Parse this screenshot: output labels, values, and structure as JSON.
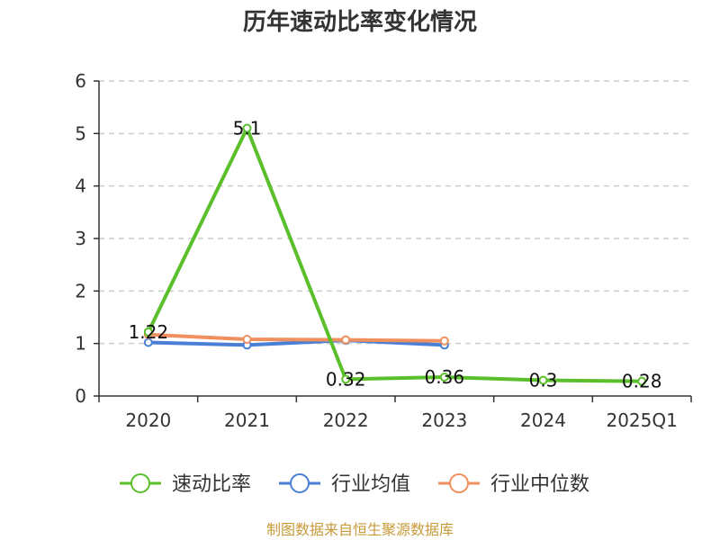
{
  "chart_data": {
    "type": "line",
    "title": "历年速动比率变化情况",
    "categories": [
      "2020",
      "2021",
      "2022",
      "2023",
      "2024",
      "2025Q1"
    ],
    "ylim": [
      0,
      6
    ],
    "yticks": [
      0,
      1,
      2,
      3,
      4,
      5,
      6
    ],
    "grid": true,
    "legend_position": "bottom",
    "series": [
      {
        "name": "速动比率",
        "color": "#5bbf2c",
        "values": [
          1.22,
          5.1,
          0.32,
          0.36,
          0.3,
          0.28
        ],
        "labels": [
          "1.22",
          "5.1",
          "0.32",
          "0.36",
          "0.3",
          "0.28"
        ]
      },
      {
        "name": "行业均值",
        "color": "#4a7fd6",
        "values": [
          1.02,
          0.97,
          1.06,
          0.97,
          null,
          null
        ]
      },
      {
        "name": "行业中位数",
        "color": "#f0905e",
        "values": [
          1.17,
          1.08,
          1.07,
          1.05,
          null,
          null
        ]
      }
    ],
    "source": "制图数据来自恒生聚源数据库"
  }
}
